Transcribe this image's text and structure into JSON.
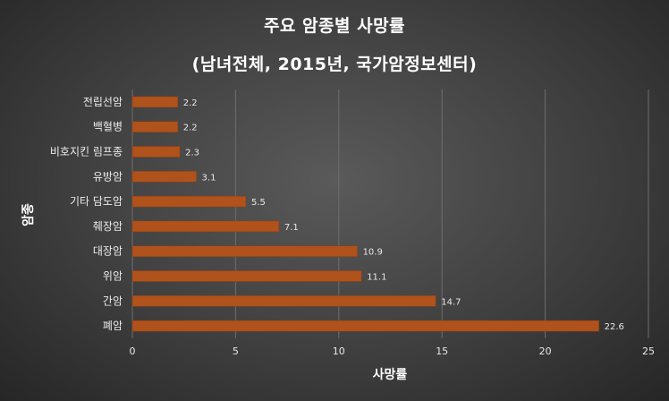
{
  "title_line1": "주요 암종별 사망률",
  "title_line2": "(남녀전체, 2015년, 국가암정보센터)",
  "colors": {
    "bar": "#b0521c",
    "bar_edge": "#8c3d12",
    "gridline": "#6e6e6e"
  },
  "chart_data": {
    "type": "bar",
    "orientation": "horizontal",
    "title": "주요 암종별 사망률 (남녀전체, 2015년, 국가암정보센터)",
    "xlabel": "사망률",
    "ylabel": "암종",
    "xlim": [
      0,
      25
    ],
    "xticks": [
      0,
      5,
      10,
      15,
      20,
      25
    ],
    "grid": "vertical",
    "categories": [
      "전립선암",
      "백혈병",
      "비호지킨 림프종",
      "유방암",
      "기타 담도암",
      "췌장암",
      "대장암",
      "위암",
      "간암",
      "폐암"
    ],
    "values": [
      2.2,
      2.2,
      2.3,
      3.1,
      5.5,
      7.1,
      10.9,
      11.1,
      14.7,
      22.6
    ],
    "value_labels": [
      "2.2",
      "2.2",
      "2.3",
      "3.1",
      "5.5",
      "7.1",
      "10.9",
      "11.1",
      "14.7",
      "22.6"
    ]
  }
}
